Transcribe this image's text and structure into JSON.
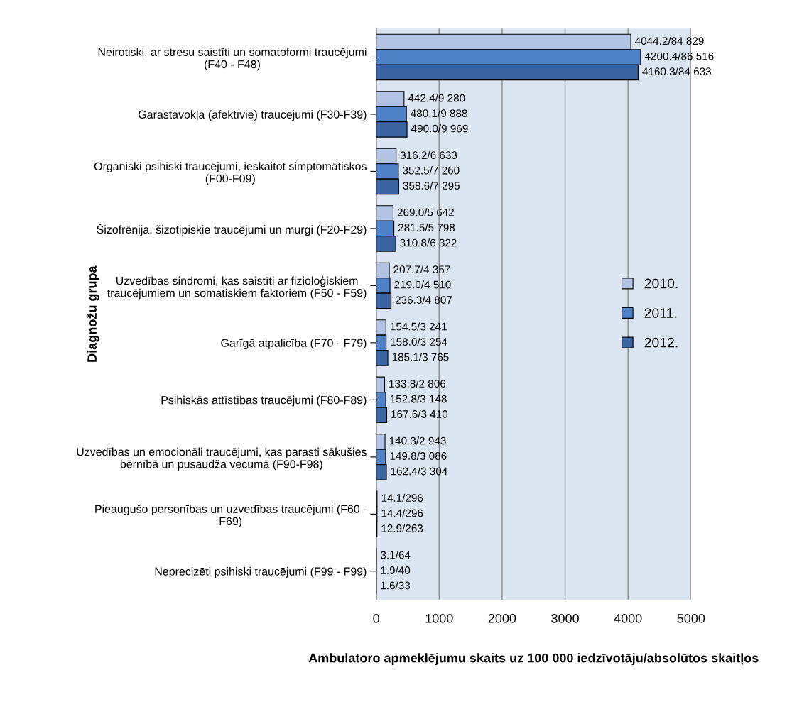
{
  "chart_data": {
    "type": "bar",
    "orientation": "horizontal",
    "xlabel": "Ambulatoro apmeklējumu skaits uz 100 000 iedzīvotāju/absolūtos skaitļos",
    "ylabel": "Diagnožu grupa",
    "categories": [
      "Neirotiski, ar stresu saistīti un somatoformi traucējumi\n(F40 - F48)",
      "Garastāvokļa (afektīvie) traucējumi (F30-F39)",
      "Organiski psihiski traucējumi, ieskaitot simptomātiskos\n(F00-F09)",
      "Šizofrēnija, šizotipiskie traucējumi un murgi (F20-F29)",
      "Uzvedības sindromi, kas saistīti ar fizioloģiskiem\ntraucējumiem un somatiskiem faktoriem (F50 - F59)",
      "Garīgā atpalicība (F70 - F79)",
      "Psihiskās attīstības traucējumi (F80-F89)",
      "Uzvedības un emocionāli traucējumi, kas parasti sākušies\nbērnībā un pusaudža vecumā (F90-F98)",
      "Pieaugušo personības un uzvedības traucējumi (F60 -\nF69)",
      "Neprecizēti psihiski traucējumi (F99 - F99)"
    ],
    "series": [
      {
        "name": "2010.",
        "color": "#b3c3e3",
        "values": [
          4044.2,
          442.4,
          316.2,
          269.0,
          207.7,
          154.5,
          133.8,
          140.3,
          14.1,
          3.1
        ],
        "value_labels": [
          "4044.2/84 829",
          "442.4/9 280",
          "316.2/6 633",
          "269.0/5 642",
          "207.7/4 357",
          "154.5/3 241",
          "133.8/2 806",
          "140.3/2 943",
          "14.1/296",
          "3.1/64"
        ]
      },
      {
        "name": "2011.",
        "color": "#4f81c7",
        "values": [
          4200.4,
          480.1,
          352.5,
          281.5,
          219.0,
          158.0,
          152.8,
          149.8,
          14.4,
          1.9
        ],
        "value_labels": [
          "4200.4/86 516",
          "480.1/9 888",
          "352.5/7 260",
          "281.5/5 798",
          "219.0/4 510",
          "158.0/3 254",
          "152.8/3 148",
          "149.8/3 086",
          "14.4/296",
          "1.9/40"
        ]
      },
      {
        "name": "2012.",
        "color": "#3b64a2",
        "values": [
          4160.3,
          490.0,
          358.6,
          310.8,
          236.3,
          185.1,
          167.6,
          162.4,
          12.9,
          1.6
        ],
        "value_labels": [
          "4160.3/84 633",
          "490.0/9 969",
          "358.6/7 295",
          "310.8/6 322",
          "236.3/4 807",
          "185.1/3 765",
          "167.6/3 410",
          "162.4/3 304",
          "12.9/263",
          "1.6/33"
        ]
      }
    ],
    "xlim": [
      0,
      5000
    ],
    "xticks": [
      0,
      1000,
      2000,
      3000,
      4000,
      5000
    ],
    "grid": "x",
    "legend": "right"
  }
}
